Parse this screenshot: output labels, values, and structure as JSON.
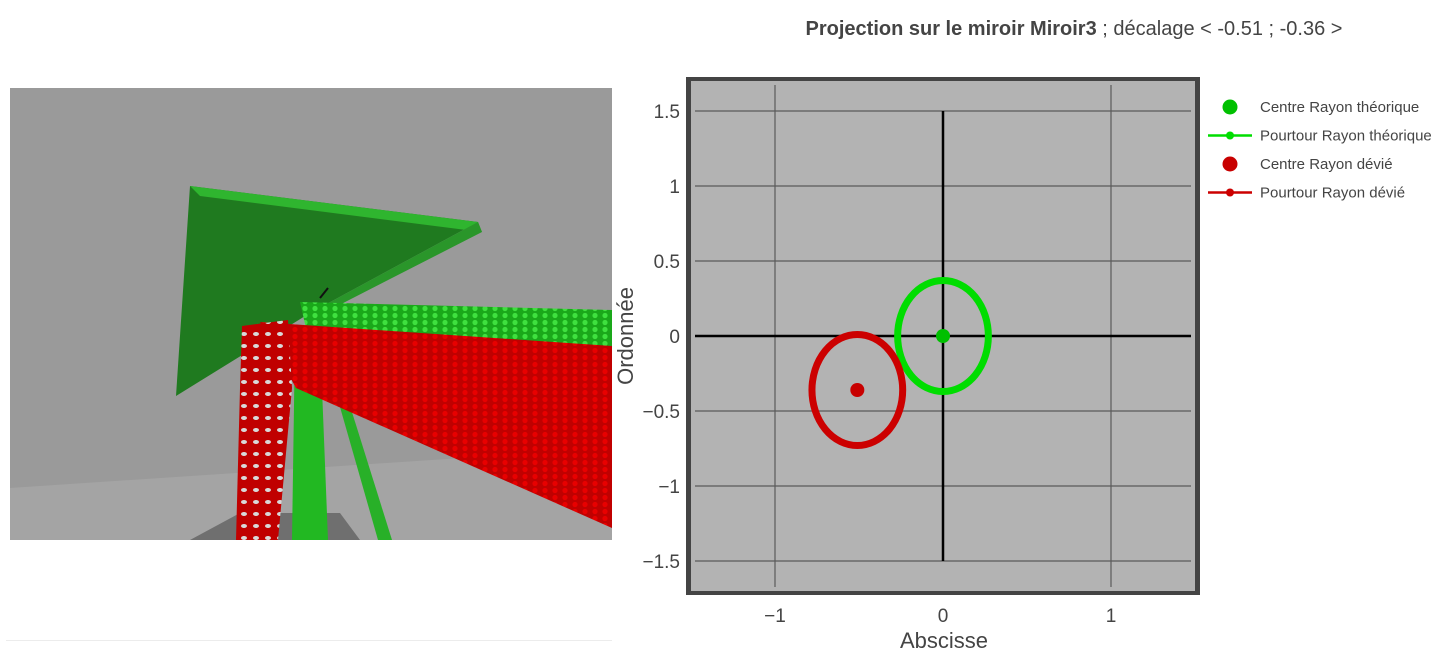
{
  "viewport": {
    "label": "3D view",
    "colors": {
      "background": "#9a9a9a",
      "mirror": "#1f7a1f",
      "mirror_edge": "#2fb52f",
      "theoretical_rays": "#22c322",
      "deviated_rays": "#d40000",
      "floor": "#6f6f6f"
    }
  },
  "chart_data": {
    "type": "scatter",
    "title_bold": "Projection sur le miroir Miroir3",
    "title_rest": " ; décalage < -0.51 ; -0.36 >",
    "xlabel": "Abscisse",
    "ylabel": "Ordonnée",
    "xlim": [
      -1.5,
      1.5
    ],
    "ylim": [
      -1.7,
      1.7
    ],
    "xticks": [
      {
        "value": -1,
        "label": "−1"
      },
      {
        "value": 0,
        "label": "0"
      },
      {
        "value": 1,
        "label": "1"
      }
    ],
    "yticks": [
      {
        "value": 1.5,
        "label": "1.5"
      },
      {
        "value": 1,
        "label": "1"
      },
      {
        "value": 0.5,
        "label": "0.5"
      },
      {
        "value": 0,
        "label": "0"
      },
      {
        "value": -0.5,
        "label": "−0.5"
      },
      {
        "value": -1,
        "label": "−1"
      },
      {
        "value": -1.5,
        "label": "−1.5"
      }
    ],
    "plot_background": "#b3b3b3",
    "grid": true,
    "legend_position": "top-right",
    "series": [
      {
        "name": "Centre Rayon théorique",
        "kind": "center",
        "color": "#00c000",
        "x": [
          0
        ],
        "y": [
          0
        ]
      },
      {
        "name": "Pourtour Rayon théorique",
        "kind": "contour",
        "color": "#00dd00",
        "center": [
          0,
          0
        ],
        "radius_x": 0.27,
        "radius_y": 0.37
      },
      {
        "name": "Centre Rayon dévié",
        "kind": "center",
        "color": "#c80000",
        "x": [
          -0.51
        ],
        "y": [
          -0.36
        ]
      },
      {
        "name": "Pourtour Rayon dévié",
        "kind": "contour",
        "color": "#cc0000",
        "center": [
          -0.51,
          -0.36
        ],
        "radius_x": 0.27,
        "radius_y": 0.37
      }
    ]
  }
}
